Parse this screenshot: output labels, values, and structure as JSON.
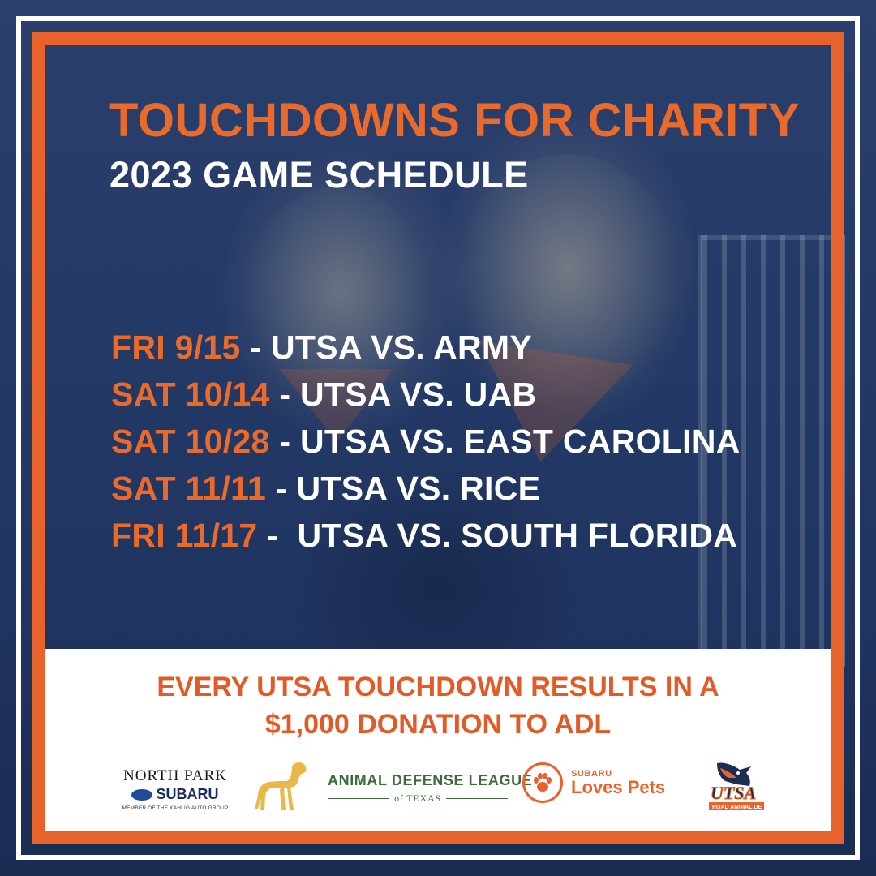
{
  "header": {
    "title": "TOUCHDOWNS FOR CHARITY",
    "subtitle": "2023 GAME SCHEDULE"
  },
  "schedule": [
    {
      "date": "FRI 9/15",
      "separator": " - ",
      "matchup": "UTSA VS. ARMY"
    },
    {
      "date": "SAT 10/14",
      "separator": " - ",
      "matchup": "UTSA VS. UAB"
    },
    {
      "date": "SAT 10/28",
      "separator": " - ",
      "matchup": "UTSA VS. EAST CAROLINA"
    },
    {
      "date": "SAT 11/11",
      "separator": " - ",
      "matchup": "UTSA VS. RICE"
    },
    {
      "date": "FRI 11/17",
      "separator": " -  ",
      "matchup": "UTSA VS. SOUTH FLORIDA"
    }
  ],
  "footer": {
    "tagline_line1": "EVERY UTSA TOUCHDOWN RESULTS IN A",
    "tagline_line2": "$1,000 DONATION TO ADL",
    "sponsors": {
      "north_park": {
        "name": "NORTH PARK",
        "brand": "SUBARU",
        "tagline": "MEMBER OF THE KAHLIG AUTO GROUP"
      },
      "adl": {
        "name": "ANIMAL DEFENSE LEAGUE",
        "sub": "of TEXAS"
      },
      "subaru_loves_pets": {
        "top": "SUBARU",
        "bottom": "Loves Pets"
      },
      "utsa": {
        "text": "UTSA",
        "sub": "ROAD ANIMAL DE"
      }
    }
  },
  "colors": {
    "accent_orange": "#ea6a2c",
    "navy_overlay": "#22375f",
    "white": "#ffffff",
    "adl_green": "#3f6a3e",
    "logo_gold": "#e8b84a"
  },
  "icons": [
    "dog-silhouette-icon",
    "paw-icon",
    "roadrunner-icon",
    "subaru-oval-icon"
  ]
}
